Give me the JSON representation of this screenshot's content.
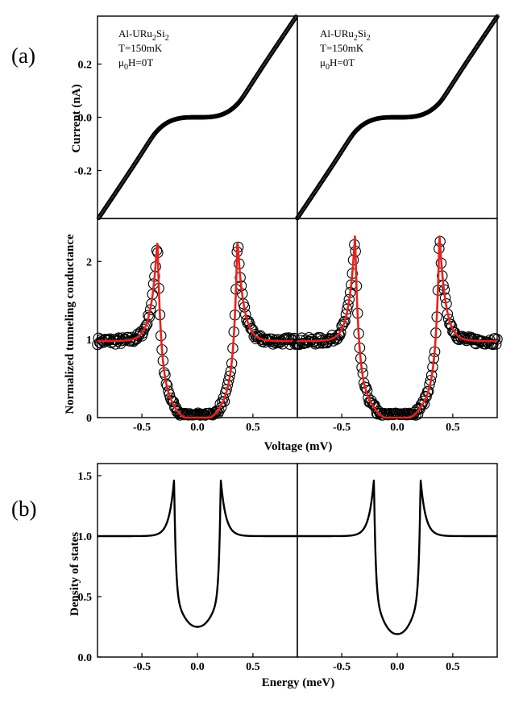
{
  "panel_a_label": "(a)",
  "panel_b_label": "(b)",
  "annotations": {
    "left": {
      "material_prefix": "Al-URu",
      "sub1": "2",
      "mid": "Si",
      "sub2": "2",
      "temperature": "T=150mK",
      "field_prefix": "μ",
      "field_sub": "0",
      "field_suffix": "H=0T"
    },
    "right": {
      "material_prefix": "Al-URu",
      "sub1": "2",
      "mid": "Si",
      "sub2": "2",
      "temperature": "T=150mK",
      "field_prefix": "μ",
      "field_sub": "0",
      "field_suffix": "H=0T"
    }
  },
  "colors": {
    "data": "#000000",
    "fit": "#e8221c"
  },
  "chart_data": [
    {
      "type": "scatter",
      "panel": "a-top",
      "ylabel": "Current (nA)",
      "xlim": [
        -0.9,
        0.9
      ],
      "ylim": [
        -0.38,
        0.38
      ],
      "yticks": [
        "0.2",
        "0.0",
        "-0.2"
      ],
      "ytick_values": [
        0.2,
        0.0,
        -0.2
      ],
      "subpanels": [
        {
          "name": "left",
          "gap_mV": 0.36,
          "current_at_gap_nA": 0.05,
          "slope_nA_per_mV": 0.62,
          "x": [
            -0.9,
            -0.7,
            -0.5,
            -0.4,
            -0.36,
            -0.3,
            -0.2,
            -0.1,
            0,
            0.1,
            0.2,
            0.3,
            0.36,
            0.4,
            0.5,
            0.7,
            0.9
          ],
          "y": [
            -0.38,
            -0.25,
            -0.13,
            -0.08,
            -0.05,
            -0.03,
            -0.01,
            -0.003,
            0,
            0.003,
            0.01,
            0.03,
            0.05,
            0.08,
            0.13,
            0.25,
            0.38
          ]
        },
        {
          "name": "right",
          "gap_mV": 0.37,
          "current_at_gap_nA": 0.05,
          "slope_nA_per_mV": 0.62,
          "x": [
            -0.9,
            -0.7,
            -0.5,
            -0.4,
            -0.37,
            -0.3,
            -0.2,
            -0.1,
            0,
            0.1,
            0.2,
            0.3,
            0.37,
            0.4,
            0.5,
            0.7,
            0.9
          ],
          "y": [
            -0.38,
            -0.25,
            -0.13,
            -0.08,
            -0.05,
            -0.03,
            -0.01,
            -0.003,
            0,
            0.003,
            0.01,
            0.03,
            0.05,
            0.08,
            0.13,
            0.25,
            0.38
          ]
        }
      ]
    },
    {
      "type": "scatter",
      "panel": "a-bottom",
      "xlabel": "Voltage (mV)",
      "ylabel": "Normalized tunneling conductance",
      "xlim": [
        -0.9,
        0.9
      ],
      "ylim": [
        0,
        2.55
      ],
      "xticks": [
        "-0.5",
        "0.0",
        "0.5"
      ],
      "xtick_values": [
        -0.5,
        0.0,
        0.5
      ],
      "yticks": [
        "0",
        "1",
        "2"
      ],
      "ytick_values": [
        0,
        1,
        2
      ],
      "series": [
        {
          "name": "",
          "style": "open circles, black"
        },
        {
          "name": "",
          "style": "line, red"
        }
      ],
      "subpanels": [
        {
          "name": "left",
          "peak_position_mV": 0.36,
          "peak_height": 2.3,
          "background": 0.98
        },
        {
          "name": "right",
          "peak_position_mV": 0.38,
          "peak_height": 2.35,
          "background": 0.98
        }
      ]
    },
    {
      "type": "line",
      "panel": "b",
      "xlabel": "Energy (meV)",
      "ylabel": "Density of states",
      "xlim": [
        -0.9,
        0.9
      ],
      "ylim": [
        0.0,
        1.6
      ],
      "xticks": [
        "-0.5",
        "0.0",
        "0.5"
      ],
      "xtick_values": [
        -0.5,
        0.0,
        0.5
      ],
      "yticks": [
        "0.0",
        "0.5",
        "1.0",
        "1.5"
      ],
      "ytick_values": [
        0.0,
        0.5,
        1.0,
        1.5
      ],
      "subpanels": [
        {
          "name": "left",
          "peak_position_meV": 0.21,
          "peak_height": 1.47,
          "min_value": 0.25,
          "background": 1.0
        },
        {
          "name": "right",
          "peak_position_meV": 0.21,
          "peak_height": 1.47,
          "min_value": 0.19,
          "background": 1.0
        }
      ]
    }
  ]
}
